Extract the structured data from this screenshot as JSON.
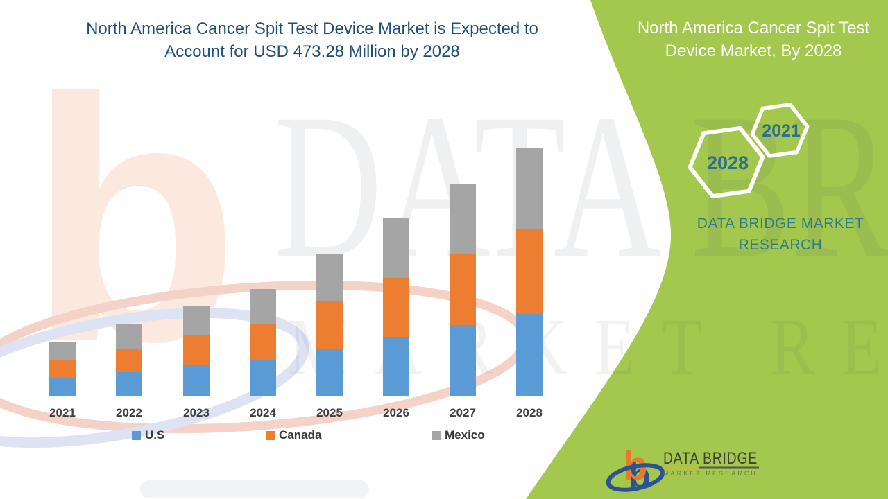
{
  "header": {
    "title_line1": "North America Cancer Spit Test Device Market is Expected to",
    "title_line2": "Account for USD 473.28 Million by 2028"
  },
  "side_panel": {
    "heading_line1": "North America Cancer Spit Test",
    "heading_line2": "Device Market, By 2028",
    "hexagons": [
      {
        "year": "2021"
      },
      {
        "year": "2028"
      }
    ],
    "brand_line1": "DATA BRIDGE MARKET",
    "brand_line2": "RESEARCH"
  },
  "footer_logo": {
    "monogram": "b",
    "name": "DATA BRIDGE",
    "tagline": "MARKET RESEARCH"
  },
  "watermark": {
    "big_text": "DATA BRIDGE",
    "sub_text": "MARKET RESEARCH",
    "monogram": "b"
  },
  "colors": {
    "panel_green": "#a4c74d",
    "title_blue": "#1f4e79",
    "brand_teal": "#2e7b90",
    "hexagon_year_text": "#2f6f8f",
    "us_blue": "#5B9BD5",
    "canada_orange": "#ED7D31",
    "mexico_gray": "#A5A5A5"
  },
  "chart_data": {
    "type": "bar",
    "stacked": true,
    "title": "North America Cancer Spit Test Device Market is Expected to Account for USD 473.28 Million by 2028",
    "unit": "USD Million",
    "categories": [
      "2021",
      "2022",
      "2023",
      "2024",
      "2025",
      "2026",
      "2027",
      "2028"
    ],
    "series": [
      {
        "name": "U.S",
        "color": "#5B9BD5",
        "values": [
          33.0,
          44.9,
          58.2,
          67.4,
          88.6,
          112.4,
          134.8,
          156.0
        ]
      },
      {
        "name": "Canada",
        "color": "#ED7D31",
        "values": [
          35.7,
          43.6,
          58.2,
          70.1,
          92.5,
          112.4,
          136.1,
          161.3
        ]
      },
      {
        "name": "Mexico",
        "color": "#A5A5A5",
        "values": [
          34.4,
          47.6,
          54.2,
          66.1,
          89.9,
          113.7,
          133.5,
          156.0
        ]
      }
    ],
    "highlight_value_2028_total": 473.28,
    "xlabel": "",
    "ylabel": "",
    "ylim": [
      0,
      500
    ],
    "gridlines": false,
    "y_axis_labels_shown": false,
    "legend_position": "bottom"
  }
}
